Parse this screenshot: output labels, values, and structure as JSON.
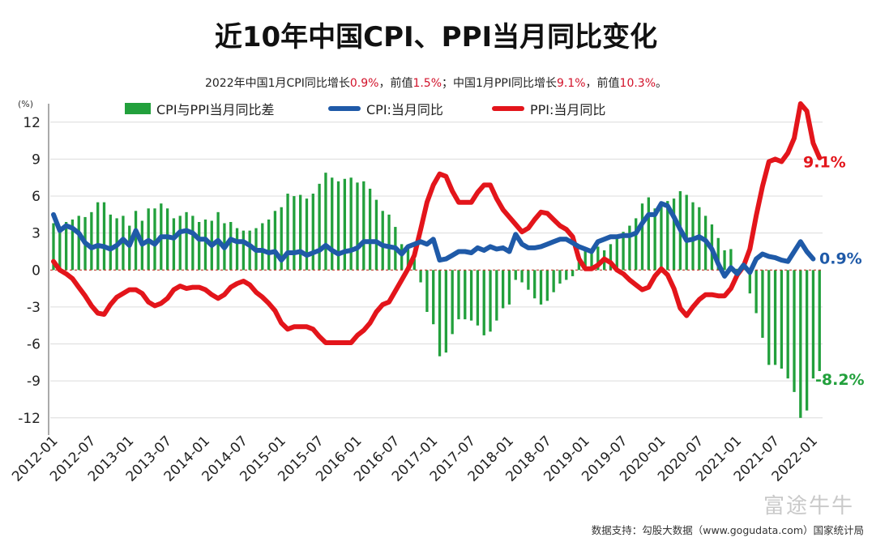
{
  "header": {
    "title": "近10年中国CPI、PPI当月同比变化",
    "subtitle_parts": [
      {
        "text": "2022年中国1月CPI同比增长",
        "hl": false
      },
      {
        "text": "0.9%",
        "hl": true
      },
      {
        "text": "，前值",
        "hl": false
      },
      {
        "text": "1.5%",
        "hl": true
      },
      {
        "text": "；中国1月PPI同比增长",
        "hl": false
      },
      {
        "text": "9.1%",
        "hl": true
      },
      {
        "text": "，前值",
        "hl": false
      },
      {
        "text": "10.3%",
        "hl": true
      },
      {
        "text": "。",
        "hl": false
      }
    ]
  },
  "footer": {
    "source": "数据支持：勾股大数据（www.gogudata.com）国家统计局"
  },
  "watermark": {
    "text": "富途牛牛"
  },
  "colors": {
    "cpi": "#1f5aa8",
    "ppi": "#e3151b",
    "diff": "#22a03c",
    "zero_line": "#c0392b",
    "grid": "#dcdcdc"
  },
  "chart_data": {
    "type": "bar+line",
    "unit_label": "(%)",
    "ylim": [
      -13,
      13.5
    ],
    "yticks": [
      12,
      9,
      6,
      3,
      0,
      -3,
      -6,
      -9,
      -12
    ],
    "x_tick_labels": [
      "2012-01",
      "2012-07",
      "2013-01",
      "2013-07",
      "2014-01",
      "2014-07",
      "2015-01",
      "2015-07",
      "2016-01",
      "2016-07",
      "2017-01",
      "2017-07",
      "2018-01",
      "2018-07",
      "2019-01",
      "2019-07",
      "2020-01",
      "2020-07",
      "2021-01",
      "2021-07",
      "2022-01"
    ],
    "x_start": "2012-01",
    "grid": "horizontal",
    "legend": {
      "position": "top",
      "items": [
        {
          "label": "CPI与PPI当月同比差",
          "kind": "bar"
        },
        {
          "label": "CPI:当月同比",
          "kind": "cpi"
        },
        {
          "label": "PPI:当月同比",
          "kind": "ppi"
        }
      ]
    },
    "end_labels": {
      "ppi": "9.1%",
      "cpi": "0.9%",
      "diff": "-8.2%"
    },
    "series": [
      {
        "name": "CPI:当月同比",
        "values": [
          4.5,
          3.2,
          3.6,
          3.4,
          3.0,
          2.2,
          1.8,
          2.0,
          1.9,
          1.7,
          2.0,
          2.5,
          2.0,
          3.2,
          2.1,
          2.4,
          2.1,
          2.7,
          2.7,
          2.6,
          3.1,
          3.2,
          3.0,
          2.5,
          2.5,
          2.0,
          2.4,
          1.8,
          2.5,
          2.3,
          2.3,
          2.0,
          1.6,
          1.6,
          1.4,
          1.5,
          0.8,
          1.4,
          1.4,
          1.5,
          1.2,
          1.4,
          1.6,
          2.0,
          1.6,
          1.3,
          1.5,
          1.6,
          1.8,
          2.3,
          2.3,
          2.3,
          2.0,
          1.9,
          1.8,
          1.3,
          1.9,
          2.1,
          2.3,
          2.1,
          2.5,
          0.8,
          0.9,
          1.2,
          1.5,
          1.5,
          1.4,
          1.8,
          1.6,
          1.9,
          1.7,
          1.8,
          1.5,
          2.9,
          2.1,
          1.8,
          1.8,
          1.9,
          2.1,
          2.3,
          2.5,
          2.5,
          2.2,
          1.9,
          1.7,
          1.5,
          2.3,
          2.5,
          2.7,
          2.7,
          2.8,
          2.8,
          3.0,
          3.8,
          4.5,
          4.5,
          5.4,
          5.2,
          4.3,
          3.3,
          2.4,
          2.5,
          2.7,
          2.4,
          1.7,
          0.5,
          -0.5,
          0.2,
          -0.3,
          0.4,
          -0.2,
          0.9,
          1.3,
          1.1,
          1.0,
          0.8,
          0.7,
          1.5,
          2.3,
          1.5,
          0.9
        ]
      },
      {
        "name": "PPI:当月同比",
        "values": [
          0.7,
          0.0,
          -0.3,
          -0.7,
          -1.4,
          -2.1,
          -2.9,
          -3.5,
          -3.6,
          -2.8,
          -2.2,
          -1.9,
          -1.6,
          -1.6,
          -1.9,
          -2.6,
          -2.9,
          -2.7,
          -2.3,
          -1.6,
          -1.3,
          -1.5,
          -1.4,
          -1.4,
          -1.6,
          -2.0,
          -2.3,
          -2.0,
          -1.4,
          -1.1,
          -0.9,
          -1.2,
          -1.8,
          -2.2,
          -2.7,
          -3.3,
          -4.3,
          -4.8,
          -4.6,
          -4.6,
          -4.6,
          -4.8,
          -5.4,
          -5.9,
          -5.9,
          -5.9,
          -5.9,
          -5.9,
          -5.3,
          -4.9,
          -4.3,
          -3.4,
          -2.8,
          -2.6,
          -1.7,
          -0.8,
          0.1,
          1.2,
          3.3,
          5.5,
          6.9,
          7.8,
          7.6,
          6.4,
          5.5,
          5.5,
          5.5,
          6.3,
          6.9,
          6.9,
          5.8,
          4.9,
          4.3,
          3.7,
          3.1,
          3.4,
          4.1,
          4.7,
          4.6,
          4.1,
          3.6,
          3.3,
          2.7,
          0.9,
          0.1,
          0.1,
          0.4,
          0.9,
          0.6,
          0.0,
          -0.3,
          -0.8,
          -1.2,
          -1.6,
          -1.4,
          -0.5,
          0.1,
          -0.4,
          -1.5,
          -3.1,
          -3.7,
          -3.0,
          -2.4,
          -2.0,
          -2.0,
          -2.1,
          -2.1,
          -1.5,
          -0.4,
          0.3,
          1.7,
          4.4,
          6.8,
          8.8,
          9.0,
          8.8,
          9.5,
          10.7,
          13.5,
          12.9,
          10.3,
          9.1
        ]
      },
      {
        "name": "CPI与PPI当月同比差",
        "values": [
          3.8,
          3.2,
          3.9,
          4.1,
          4.4,
          4.3,
          4.7,
          5.5,
          5.5,
          4.5,
          4.2,
          4.4,
          3.6,
          4.8,
          4.0,
          5.0,
          5.0,
          5.4,
          5.0,
          4.2,
          4.4,
          4.7,
          4.4,
          3.9,
          4.1,
          4.0,
          4.7,
          3.8,
          3.9,
          3.4,
          3.2,
          3.2,
          3.4,
          3.8,
          4.1,
          4.8,
          5.1,
          6.2,
          6.0,
          6.1,
          5.8,
          6.2,
          7.0,
          7.9,
          7.5,
          7.2,
          7.4,
          7.5,
          7.1,
          7.2,
          6.6,
          5.7,
          4.8,
          4.5,
          3.5,
          2.1,
          1.8,
          0.9,
          -1.0,
          -3.4,
          -4.4,
          -7.0,
          -6.7,
          -5.2,
          -4.0,
          -4.0,
          -4.1,
          -4.5,
          -5.3,
          -5.0,
          -4.1,
          -3.1,
          -2.8,
          -0.8,
          -1.0,
          -1.6,
          -2.3,
          -2.8,
          -2.5,
          -1.8,
          -1.1,
          -0.8,
          -0.5,
          1.0,
          1.6,
          1.4,
          1.9,
          1.6,
          2.1,
          2.7,
          3.1,
          3.6,
          4.2,
          5.4,
          5.9,
          5.0,
          5.3,
          5.6,
          5.8,
          6.4,
          6.1,
          5.5,
          5.1,
          4.4,
          3.7,
          2.6,
          1.6,
          1.7,
          0.1,
          0.1,
          -1.9,
          -3.5,
          -5.5,
          -7.7,
          -7.7,
          -8.0,
          -8.8,
          -9.9,
          -12.0,
          -11.4,
          -8.8,
          -8.2
        ]
      }
    ]
  }
}
